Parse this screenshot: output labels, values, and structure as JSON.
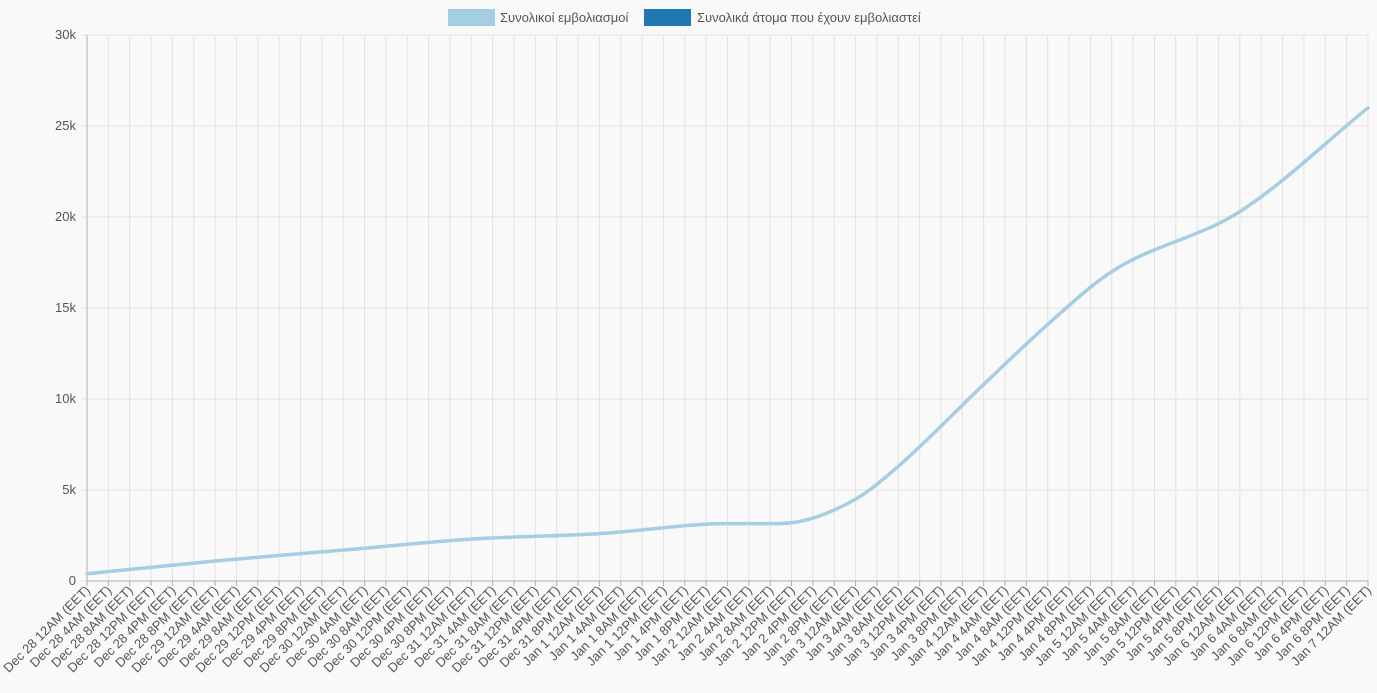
{
  "colors": {
    "background": "#f9f9f9",
    "grid": "#e2e2e2",
    "axis": "#b0b0b0",
    "text": "#555555"
  },
  "chart_data": {
    "type": "line",
    "title": "",
    "xlabel": "",
    "ylabel": "",
    "ylim": [
      0,
      30000
    ],
    "y_ticks": [
      0,
      5000,
      10000,
      15000,
      20000,
      25000,
      30000
    ],
    "y_tick_labels": [
      "0",
      "5k",
      "10k",
      "15k",
      "20k",
      "25k",
      "30k"
    ],
    "grid": true,
    "legend_position": "top",
    "x_tick_labels": [
      "Dec 28 12AM (EET)",
      "Dec 28 4AM (EET)",
      "Dec 28 8AM (EET)",
      "Dec 28 12PM (EET)",
      "Dec 28 4PM (EET)",
      "Dec 28 8PM (EET)",
      "Dec 29 12AM (EET)",
      "Dec 29 4AM (EET)",
      "Dec 29 8AM (EET)",
      "Dec 29 12PM (EET)",
      "Dec 29 4PM (EET)",
      "Dec 29 8PM (EET)",
      "Dec 30 12AM (EET)",
      "Dec 30 4AM (EET)",
      "Dec 30 8AM (EET)",
      "Dec 30 12PM (EET)",
      "Dec 30 4PM (EET)",
      "Dec 30 8PM (EET)",
      "Dec 31 12AM (EET)",
      "Dec 31 4AM (EET)",
      "Dec 31 8AM (EET)",
      "Dec 31 12PM (EET)",
      "Dec 31 4PM (EET)",
      "Dec 31 8PM (EET)",
      "Jan 1 12AM (EET)",
      "Jan 1 4AM (EET)",
      "Jan 1 8AM (EET)",
      "Jan 1 12PM (EET)",
      "Jan 1 4PM (EET)",
      "Jan 1 8PM (EET)",
      "Jan 2 12AM (EET)",
      "Jan 2 4AM (EET)",
      "Jan 2 8AM (EET)",
      "Jan 2 12PM (EET)",
      "Jan 2 4PM (EET)",
      "Jan 2 8PM (EET)",
      "Jan 3 12AM (EET)",
      "Jan 3 4AM (EET)",
      "Jan 3 8AM (EET)",
      "Jan 3 12PM (EET)",
      "Jan 3 4PM (EET)",
      "Jan 3 8PM (EET)",
      "Jan 4 12AM (EET)",
      "Jan 4 4AM (EET)",
      "Jan 4 8AM (EET)",
      "Jan 4 12PM (EET)",
      "Jan 4 4PM (EET)",
      "Jan 4 8PM (EET)",
      "Jan 5 12AM (EET)",
      "Jan 5 4AM (EET)",
      "Jan 5 8AM (EET)",
      "Jan 5 12PM (EET)",
      "Jan 5 4PM (EET)",
      "Jan 5 8PM (EET)",
      "Jan 6 12AM (EET)",
      "Jan 6 4AM (EET)",
      "Jan 6 8AM (EET)",
      "Jan 6 12PM (EET)",
      "Jan 6 4PM (EET)",
      "Jan 6 8PM (EET)",
      "Jan 7 12AM (EET)"
    ],
    "series": [
      {
        "name": "Συνολικοί εμβολιασμοί",
        "color": "#a6cee3",
        "x": [
          "Dec 28 12AM (EET)",
          "Dec 29 12AM (EET)",
          "Dec 30 12AM (EET)",
          "Dec 31 12AM (EET)",
          "Jan 1 12AM (EET)",
          "Jan 2 12AM (EET)",
          "Jan 2 8AM (EET)",
          "Jan 2 12PM (EET)",
          "Jan 3 12AM (EET)",
          "Jan 3 8AM (EET)",
          "Jan 4 12AM (EET)",
          "Jan 4 12PM (EET)",
          "Jan 5 12AM (EET)",
          "Jan 6 12AM (EET)",
          "Jan 7 12AM (EET)"
        ],
        "values": [
          400,
          1100,
          1700,
          2300,
          2600,
          3150,
          3150,
          3200,
          4500,
          6300,
          10800,
          14100,
          17000,
          20300,
          26000
        ]
      },
      {
        "name": "Συνολικά άτομα που έχουν εμβολιαστεί",
        "color": "#1f78b4",
        "x": [],
        "values": []
      }
    ]
  }
}
